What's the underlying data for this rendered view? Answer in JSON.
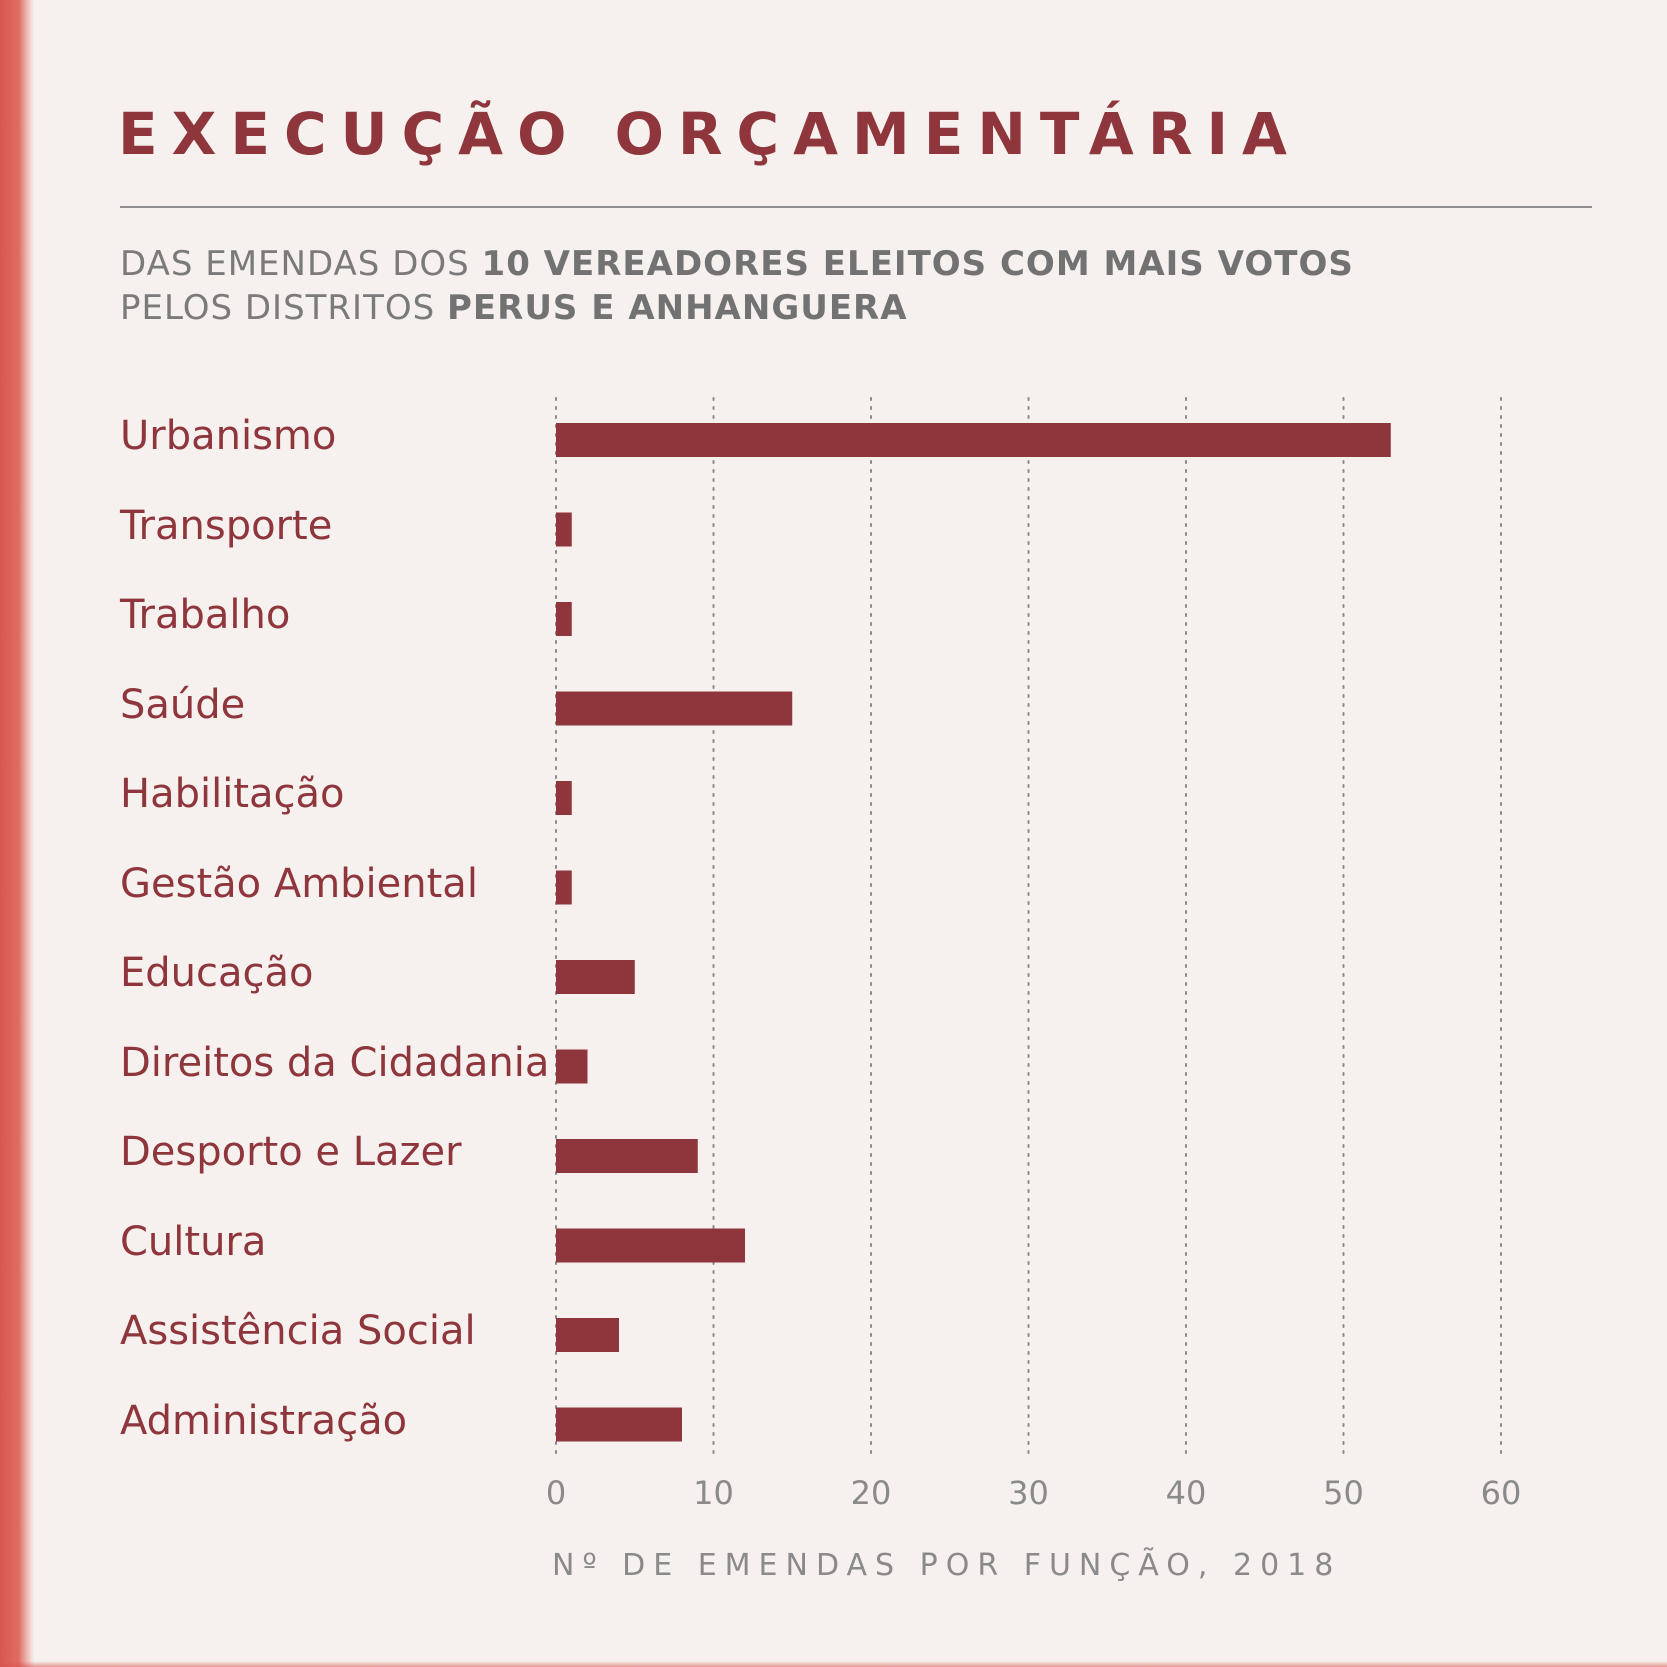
{
  "header": {
    "title": "EXECUÇÃO ORÇAMENTÁRIA",
    "subtitle_line1_prefix": "DAS EMENDAS DOS ",
    "subtitle_line1_bold": "10 VEREADORES ELEITOS COM MAIS VOTOS",
    "subtitle_line2_prefix": "PELOS DISTRITOS ",
    "subtitle_line2_bold": "PERUS E ANHANGUERA"
  },
  "colors": {
    "bar": "#8e363b",
    "text_accent": "#8e363b",
    "text_muted": "#7a7a7a",
    "grid": "#8a8a8a",
    "background": "#f6f1ef",
    "edge": "#d9564f"
  },
  "chart_data": {
    "type": "bar",
    "orientation": "horizontal",
    "categories": [
      "Urbanismo",
      "Transporte",
      "Trabalho",
      "Saúde",
      "Habilitação",
      "Gestão Ambiental",
      "Educação",
      "Direitos da Cidadania",
      "Desporto e Lazer",
      "Cultura",
      "Assistência Social",
      "Administração"
    ],
    "values": [
      53,
      1,
      1,
      15,
      1,
      1,
      5,
      2,
      9,
      12,
      4,
      8
    ],
    "xlabel": "Nº DE EMENDAS POR FUNÇÃO, 2018",
    "xlim": [
      0,
      60
    ],
    "xticks": [
      "0",
      "10",
      "20",
      "30",
      "40",
      "50",
      "60"
    ],
    "grid": "vertical dotted"
  }
}
